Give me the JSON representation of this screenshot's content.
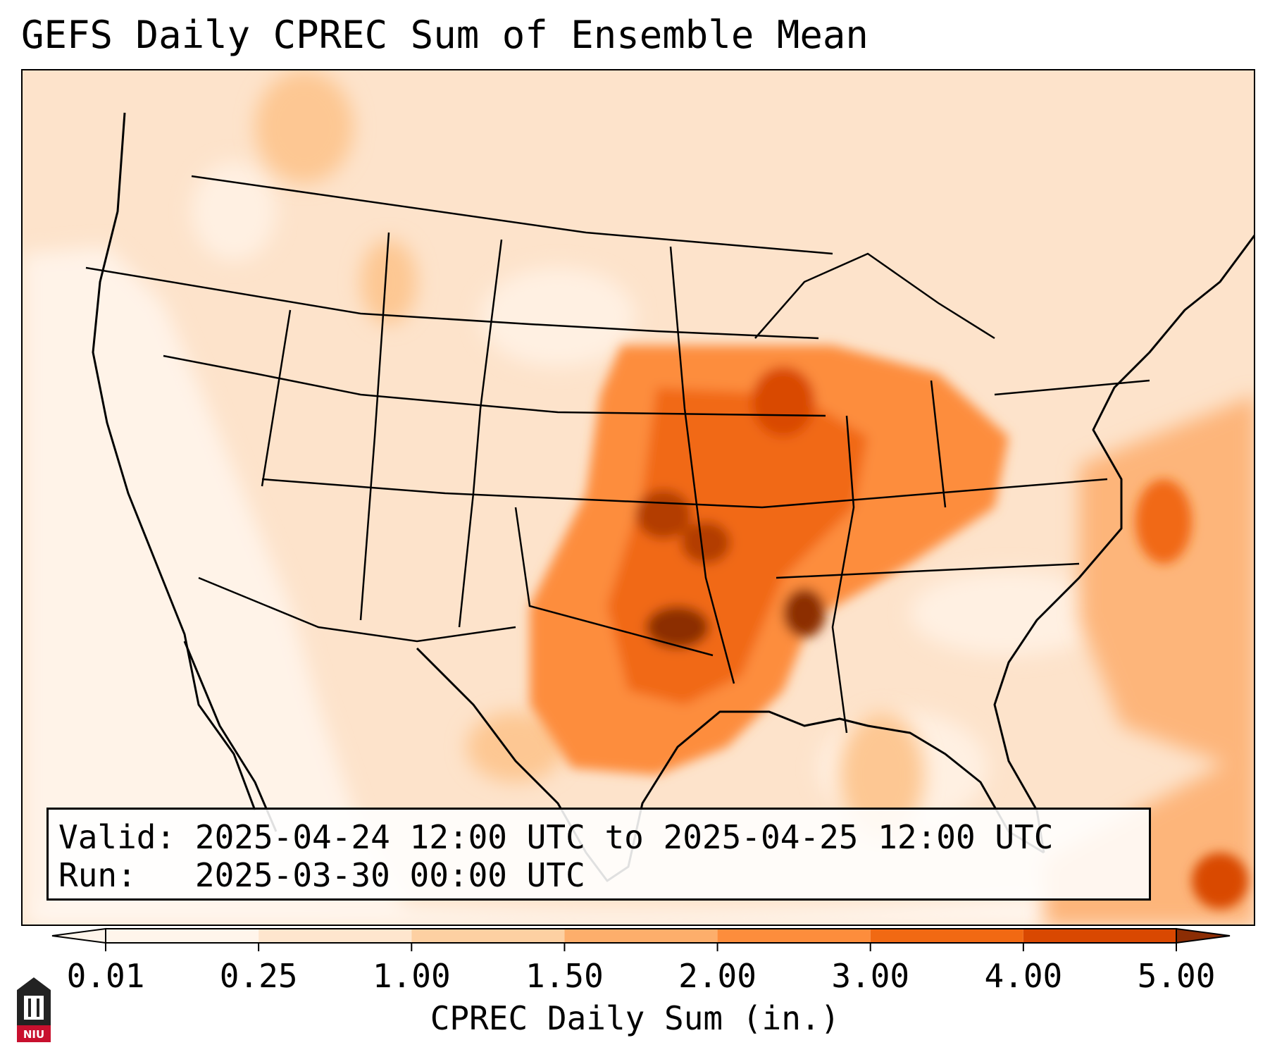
{
  "title": "GEFS Daily CPREC Sum of Ensemble Mean",
  "info": {
    "valid_label": "Valid:",
    "valid_value": "2025-04-24 12:00 UTC to 2025-04-25 12:00 UTC",
    "run_label": "Run:",
    "run_value": "2025-03-30 00:00 UTC"
  },
  "colorbar": {
    "label": "CPREC Daily Sum (in.)",
    "ticks": [
      "0.01",
      "0.25",
      "1.00",
      "1.50",
      "2.00",
      "3.00",
      "4.00",
      "5.00"
    ],
    "colors": [
      "#fff5eb",
      "#fee6ce",
      "#fdd0a2",
      "#fdae6b",
      "#fd8d3c",
      "#f16913",
      "#d94801",
      "#8c2d04"
    ]
  },
  "map": {
    "region": "Continental United States",
    "field": "CPREC daily sum, ensemble mean"
  },
  "logo_text": "NIU"
}
